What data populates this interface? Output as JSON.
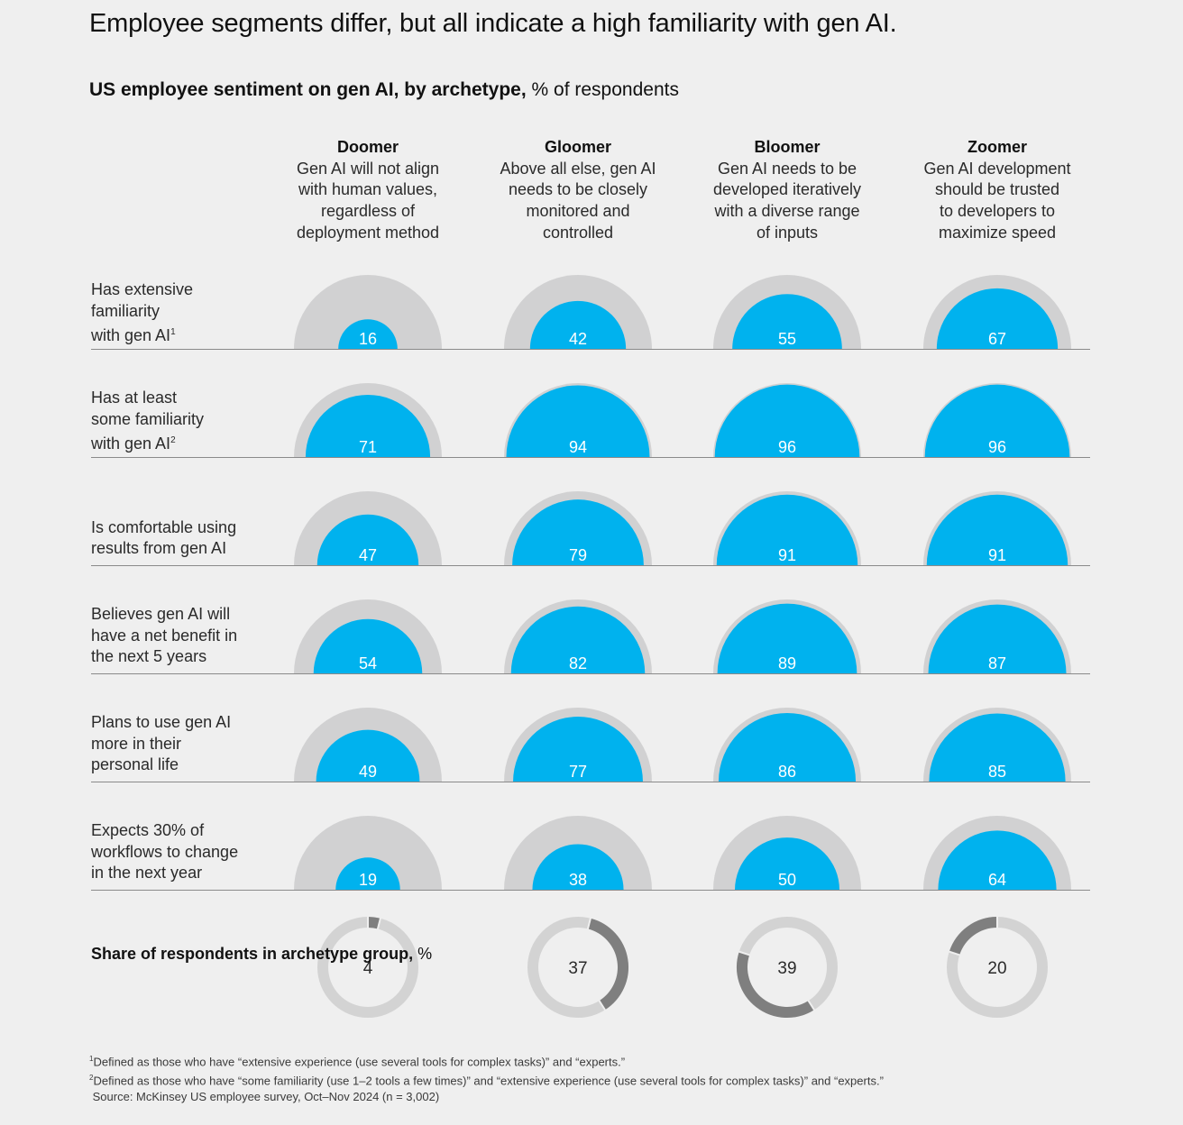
{
  "title": "Employee segments differ, but all indicate a high familiarity with gen AI.",
  "subtitle_bold": "US employee sentiment on gen AI, by archetype,",
  "subtitle_unit": "% of respondents",
  "share_label_bold": "Share of respondents in archetype group,",
  "share_label_unit": "%",
  "footnotes": {
    "note1_marker": "1",
    "note1": "Defined as those who have “extensive experience (use several tools for complex tasks)” and “experts.”",
    "note2_marker": "2",
    "note2": "Defined as those who have “some familiarity (use 1–2 tools a few times)” and “extensive experience (use several tools for complex tasks)” and “experts.”",
    "source": "Source: McKinsey US employee survey, Oct–Nov 2024 (n = 3,002)"
  },
  "colors": {
    "accent": "#00b2ee",
    "track": "#d1d1d2",
    "share_dark": "#7f7f7f",
    "share_light": "#d3d3d3",
    "rule": "#8a8a8a"
  },
  "chart_data": {
    "type": "semicircle-proportional",
    "archetypes": [
      {
        "name": "Doomer",
        "lines": [
          "Gen AI will not align",
          "with human values,",
          "regardless of",
          "deployment method"
        ]
      },
      {
        "name": "Gloomer",
        "lines": [
          "Above all else, gen AI",
          "needs to be closely",
          "monitored and",
          "controlled"
        ]
      },
      {
        "name": "Bloomer",
        "lines": [
          "Gen AI needs to be",
          "developed iteratively",
          "with a diverse range",
          "of inputs"
        ]
      },
      {
        "name": "Zoomer",
        "lines": [
          "Gen AI development",
          "should be trusted",
          "to developers to",
          "maximize speed"
        ]
      }
    ],
    "rows": [
      {
        "label_lines": [
          "Has extensive",
          "familiarity",
          "with gen AI"
        ],
        "sup": "1",
        "values": [
          16,
          42,
          55,
          67
        ]
      },
      {
        "label_lines": [
          "Has at least",
          "some familiarity",
          "with gen AI"
        ],
        "sup": "2",
        "values": [
          71,
          94,
          96,
          96
        ]
      },
      {
        "label_lines": [
          "Is comfortable using",
          "results from gen AI"
        ],
        "sup": "",
        "values": [
          47,
          79,
          91,
          91
        ]
      },
      {
        "label_lines": [
          "Believes gen AI will",
          "have a net benefit in",
          "the next 5 years"
        ],
        "sup": "",
        "values": [
          54,
          82,
          89,
          87
        ]
      },
      {
        "label_lines": [
          "Plans to use gen AI",
          "more in their",
          "personal life"
        ],
        "sup": "",
        "values": [
          49,
          77,
          86,
          85
        ]
      },
      {
        "label_lines": [
          "Expects 30% of",
          "workflows to change",
          "in the next year"
        ],
        "sup": "",
        "values": [
          19,
          38,
          50,
          64
        ]
      }
    ],
    "share": [
      4,
      37,
      39,
      20
    ],
    "scale_max": 100
  }
}
